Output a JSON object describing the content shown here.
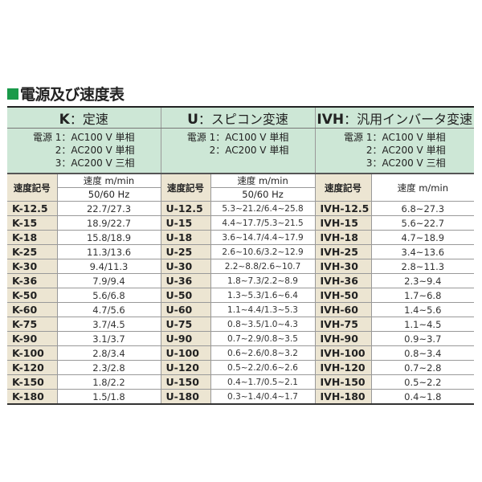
{
  "title": "電源及び速度表",
  "columns": [
    {
      "letter": "K",
      "name": "：定速",
      "power": [
        "1：AC100 V 単相",
        "2：AC200 V 単相",
        "3：AC200 V 三相"
      ]
    },
    {
      "letter": "U",
      "name": "：スピコン変速",
      "power": [
        "1：AC100 V 単相",
        "2：AC200 V 単相"
      ]
    },
    {
      "letter": "IVH",
      "name": "：汎用インバータ変速",
      "power": [
        "1：AC100 V 単相",
        "2：AC200 V 単相",
        "3：AC200 V 三相"
      ]
    }
  ],
  "power_label": "電源",
  "code_header": "速度記号",
  "speed_header": "速度 m/min",
  "freq_header": "50/60 Hz",
  "rows": [
    [
      "K-12.5",
      "22.7/27.3",
      "U-12.5",
      "5.3~21.2/6.4~25.8",
      "IVH-12.5",
      "6.8~27.3"
    ],
    [
      "K-15",
      "18.9/22.7",
      "U-15",
      "4.4~17.7/5.3~21.5",
      "IVH-15",
      "5.6~22.7"
    ],
    [
      "K-18",
      "15.8/18.9",
      "U-18",
      "3.6~14.7/4.4~17.9",
      "IVH-18",
      "4.7~18.9"
    ],
    [
      "K-25",
      "11.3/13.6",
      "U-25",
      "2.6~10.6/3.2~12.9",
      "IVH-25",
      "3.4~13.6"
    ],
    [
      "K-30",
      "9.4/11.3",
      "U-30",
      "2.2~8.8/2.6~10.7",
      "IVH-30",
      "2.8~11.3"
    ],
    [
      "K-36",
      "7.9/9.4",
      "U-36",
      "1.8~7.3/2.2~8.9",
      "IVH-36",
      "2.3~9.4"
    ],
    [
      "K-50",
      "5.6/6.8",
      "U-50",
      "1.3~5.3/1.6~6.4",
      "IVH-50",
      "1.7~6.8"
    ],
    [
      "K-60",
      "4.7/5.6",
      "U-60",
      "1.1~4.4/1.3~5.3",
      "IVH-60",
      "1.4~5.6"
    ],
    [
      "K-75",
      "3.7/4.5",
      "U-75",
      "0.8~3.5/1.0~4.3",
      "IVH-75",
      "1.1~4.5"
    ],
    [
      "K-90",
      "3.1/3.7",
      "U-90",
      "0.7~2.9/0.8~3.5",
      "IVH-90",
      "0.9~3.7"
    ],
    [
      "K-100",
      "2.8/3.4",
      "U-100",
      "0.6~2.6/0.8~3.2",
      "IVH-100",
      "0.8~3.4"
    ],
    [
      "K-120",
      "2.3/2.8",
      "U-120",
      "0.5~2.2/0.6~2.6",
      "IVH-120",
      "0.7~2.8"
    ],
    [
      "K-150",
      "1.8/2.2",
      "U-150",
      "0.4~1.7/0.5~2.1",
      "IVH-150",
      "0.5~2.2"
    ],
    [
      "K-180",
      "1.5/1.8",
      "U-180",
      "0.3~1.4/0.4~1.7",
      "IVH-180",
      "0.4~1.8"
    ]
  ]
}
